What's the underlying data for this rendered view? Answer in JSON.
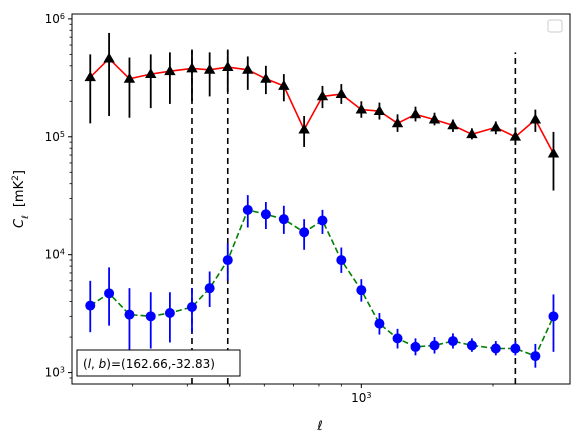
{
  "chart_data": {
    "type": "line",
    "xlabel": "ℓ",
    "ylabel": "C",
    "ylabel_sub": "ℓ",
    "ylabel_unit": "[mK",
    "ylabel_unit_sup": "2",
    "ylabel_unit_end": "]",
    "xscale": "log",
    "yscale": "log",
    "xlim": [
      218,
      3000
    ],
    "ylim": [
      800,
      1100000
    ],
    "x_ticks": [
      {
        "value": 1000,
        "base": "10",
        "exp": "3"
      }
    ],
    "y_ticks": [
      {
        "value": 1000,
        "base": "10",
        "exp": "3"
      },
      {
        "value": 10000,
        "base": "10",
        "exp": "4"
      },
      {
        "value": 100000,
        "base": "10",
        "exp": "5"
      },
      {
        "value": 1000000,
        "base": "10",
        "exp": "6"
      }
    ],
    "vlines": [
      {
        "x": 410,
        "ymin": 800,
        "ymax": 550000
      },
      {
        "x": 495,
        "ymin": 800,
        "ymax": 550000
      },
      {
        "x": 2250,
        "ymin": 800,
        "ymax": 520000
      }
    ],
    "annotation": "(l, b)=(162.66,-32.83)",
    "annotation_parts": {
      "l": "l",
      "b": "b",
      "rest": "=(162.66,-32.83)"
    },
    "series": [
      {
        "marker": "triangle",
        "color": "#000000",
        "line_color": "#ff0000",
        "line_style": "solid",
        "points": [
          {
            "x": 240,
            "y": 320000,
            "lo": 130000,
            "hi": 500000
          },
          {
            "x": 265,
            "y": 460000,
            "lo": 150000,
            "hi": 760000
          },
          {
            "x": 295,
            "y": 310000,
            "lo": 145000,
            "hi": 470000
          },
          {
            "x": 330,
            "y": 340000,
            "lo": 175000,
            "hi": 500000
          },
          {
            "x": 365,
            "y": 360000,
            "lo": 190000,
            "hi": 520000
          },
          {
            "x": 410,
            "y": 380000,
            "lo": 200000,
            "hi": 540000
          },
          {
            "x": 450,
            "y": 370000,
            "lo": 220000,
            "hi": 520000
          },
          {
            "x": 495,
            "y": 390000,
            "lo": 240000,
            "hi": 540000
          },
          {
            "x": 550,
            "y": 370000,
            "lo": 250000,
            "hi": 480000
          },
          {
            "x": 605,
            "y": 310000,
            "lo": 230000,
            "hi": 400000
          },
          {
            "x": 665,
            "y": 270000,
            "lo": 200000,
            "hi": 340000
          },
          {
            "x": 740,
            "y": 115000,
            "lo": 82000,
            "hi": 150000
          },
          {
            "x": 815,
            "y": 220000,
            "lo": 175000,
            "hi": 270000
          },
          {
            "x": 900,
            "y": 230000,
            "lo": 190000,
            "hi": 280000
          },
          {
            "x": 1000,
            "y": 170000,
            "lo": 145000,
            "hi": 200000
          },
          {
            "x": 1100,
            "y": 165000,
            "lo": 140000,
            "hi": 195000
          },
          {
            "x": 1210,
            "y": 130000,
            "lo": 110000,
            "hi": 155000
          },
          {
            "x": 1330,
            "y": 155000,
            "lo": 135000,
            "hi": 180000
          },
          {
            "x": 1470,
            "y": 140000,
            "lo": 125000,
            "hi": 160000
          },
          {
            "x": 1620,
            "y": 125000,
            "lo": 110000,
            "hi": 140000
          },
          {
            "x": 1790,
            "y": 105000,
            "lo": 95000,
            "hi": 118000
          },
          {
            "x": 2030,
            "y": 120000,
            "lo": 105000,
            "hi": 135000
          },
          {
            "x": 2250,
            "y": 100000,
            "lo": 85000,
            "hi": 120000
          },
          {
            "x": 2500,
            "y": 140000,
            "lo": 110000,
            "hi": 170000
          },
          {
            "x": 2750,
            "y": 72000,
            "lo": 35000,
            "hi": 110000
          }
        ]
      },
      {
        "marker": "circle",
        "color": "#0000ff",
        "line_color": "#008000",
        "line_style": "dashed",
        "points": [
          {
            "x": 240,
            "y": 3700,
            "lo": 2200,
            "hi": 6000
          },
          {
            "x": 265,
            "y": 4700,
            "lo": 2500,
            "hi": 7800
          },
          {
            "x": 295,
            "y": 3100,
            "lo": 1500,
            "hi": 5200
          },
          {
            "x": 330,
            "y": 3000,
            "lo": 1600,
            "hi": 4800
          },
          {
            "x": 365,
            "y": 3200,
            "lo": 1800,
            "hi": 4800
          },
          {
            "x": 410,
            "y": 3600,
            "lo": 2200,
            "hi": 5200
          },
          {
            "x": 450,
            "y": 5200,
            "lo": 3600,
            "hi": 7200
          },
          {
            "x": 495,
            "y": 9000,
            "lo": 6000,
            "hi": 12500
          },
          {
            "x": 550,
            "y": 24000,
            "lo": 17000,
            "hi": 32000
          },
          {
            "x": 605,
            "y": 22000,
            "lo": 16500,
            "hi": 28000
          },
          {
            "x": 665,
            "y": 20000,
            "lo": 15000,
            "hi": 26000
          },
          {
            "x": 740,
            "y": 15500,
            "lo": 11000,
            "hi": 20000
          },
          {
            "x": 815,
            "y": 19500,
            "lo": 15000,
            "hi": 24000
          },
          {
            "x": 900,
            "y": 9000,
            "lo": 7000,
            "hi": 11500
          },
          {
            "x": 1000,
            "y": 5000,
            "lo": 4000,
            "hi": 6200
          },
          {
            "x": 1100,
            "y": 2600,
            "lo": 2100,
            "hi": 3200
          },
          {
            "x": 1210,
            "y": 1950,
            "lo": 1600,
            "hi": 2350
          },
          {
            "x": 1330,
            "y": 1650,
            "lo": 1400,
            "hi": 1950
          },
          {
            "x": 1470,
            "y": 1700,
            "lo": 1450,
            "hi": 2000
          },
          {
            "x": 1620,
            "y": 1850,
            "lo": 1600,
            "hi": 2150
          },
          {
            "x": 1790,
            "y": 1700,
            "lo": 1500,
            "hi": 1950
          },
          {
            "x": 2030,
            "y": 1600,
            "lo": 1400,
            "hi": 1850
          },
          {
            "x": 2250,
            "y": 1600,
            "lo": 1400,
            "hi": 1850
          },
          {
            "x": 2500,
            "y": 1380,
            "lo": 1100,
            "hi": 1750
          },
          {
            "x": 2750,
            "y": 3000,
            "lo": 1500,
            "hi": 4600
          }
        ]
      }
    ]
  }
}
